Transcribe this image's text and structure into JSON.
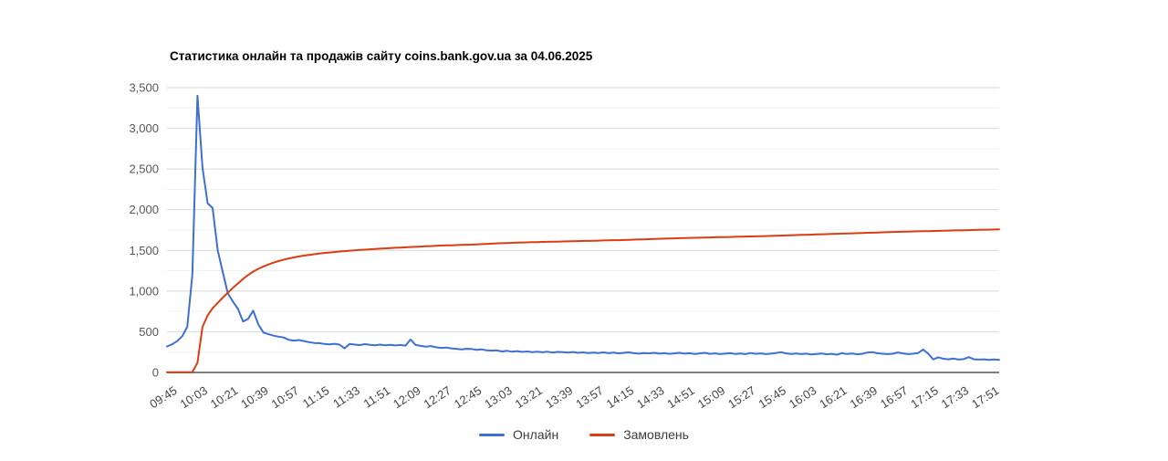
{
  "chart_data": {
    "type": "line",
    "title": "Статистика онлайн та продажів сайту coins.bank.gov.ua за 04.06.2025",
    "xlabel": "",
    "ylabel": "",
    "ylim": [
      0,
      3500
    ],
    "grid": "on",
    "legend_position": "bottom",
    "x_tick_labels": [
      "09:45",
      "10:03",
      "10:21",
      "10:39",
      "10:57",
      "11:15",
      "11:33",
      "11:51",
      "12:09",
      "12:27",
      "12:45",
      "13:03",
      "13:21",
      "13:39",
      "13:57",
      "14:15",
      "14:33",
      "14:51",
      "15:09",
      "15:27",
      "15:45",
      "16:03",
      "16:21",
      "16:39",
      "16:57",
      "17:15",
      "17:33",
      "17:51"
    ],
    "points_per_x_tick": 6,
    "sample_interval_minutes": 3,
    "y_tick_values": [
      0,
      500,
      1000,
      1500,
      2000,
      2500,
      3000,
      3500
    ],
    "y_tick_labels": [
      "0",
      "500",
      "1,000",
      "1,500",
      "2,000",
      "2,500",
      "3,000",
      "3,500"
    ],
    "minor_gridline_values": [
      250,
      750,
      1250,
      1750,
      2250,
      2750,
      3250
    ],
    "series": [
      {
        "name": "Онлайн",
        "color": "#3e6fd4",
        "values": [
          320,
          345,
          385,
          445,
          560,
          1200,
          3400,
          2520,
          2080,
          2020,
          1500,
          1230,
          970,
          870,
          780,
          625,
          660,
          760,
          590,
          490,
          470,
          452,
          440,
          430,
          400,
          392,
          398,
          385,
          372,
          362,
          360,
          350,
          344,
          352,
          342,
          296,
          350,
          342,
          336,
          348,
          340,
          334,
          342,
          334,
          340,
          332,
          338,
          330,
          405,
          338,
          326,
          318,
          324,
          310,
          302,
          306,
          296,
          290,
          284,
          290,
          288,
          278,
          284,
          272,
          268,
          272,
          258,
          266,
          256,
          262,
          252,
          258,
          250,
          256,
          248,
          255,
          245,
          252,
          250,
          245,
          251,
          241,
          247,
          239,
          245,
          239,
          247,
          237,
          243,
          235,
          241,
          247,
          237,
          231,
          239,
          234,
          241,
          231,
          237,
          229,
          235,
          241,
          231,
          237,
          227,
          234,
          241,
          229,
          235,
          225,
          231,
          237,
          227,
          233,
          225,
          239,
          229,
          235,
          225,
          231,
          239,
          249,
          234,
          227,
          233,
          225,
          231,
          221,
          227,
          233,
          223,
          229,
          219,
          237,
          227,
          233,
          223,
          229,
          244,
          250,
          236,
          230,
          226,
          230,
          246,
          234,
          226,
          230,
          238,
          282,
          232,
          160,
          186,
          168,
          162,
          170,
          158,
          164,
          188,
          162,
          158,
          162,
          154,
          159,
          155
        ]
      },
      {
        "name": "Замовлень",
        "color": "#da3d12",
        "values": [
          2,
          2,
          2,
          3,
          3,
          4,
          120,
          560,
          700,
          790,
          855,
          920,
          980,
          1040,
          1095,
          1150,
          1198,
          1240,
          1273,
          1302,
          1327,
          1350,
          1369,
          1386,
          1401,
          1414,
          1426,
          1436,
          1445,
          1453,
          1461,
          1468,
          1474,
          1480,
          1486,
          1491,
          1496,
          1501,
          1505,
          1509,
          1513,
          1517,
          1521,
          1525,
          1529,
          1532,
          1535,
          1538,
          1541,
          1544,
          1547,
          1550,
          1553,
          1556,
          1559,
          1561,
          1563,
          1565,
          1567,
          1569,
          1571,
          1574,
          1577,
          1580,
          1583,
          1586,
          1589,
          1591,
          1593,
          1595,
          1597,
          1599,
          1601,
          1602,
          1604,
          1605,
          1607,
          1608,
          1610,
          1611,
          1613,
          1614,
          1616,
          1617,
          1619,
          1620,
          1622,
          1623,
          1625,
          1626,
          1628,
          1630,
          1632,
          1634,
          1636,
          1638,
          1640,
          1642,
          1644,
          1646,
          1648,
          1650,
          1652,
          1653,
          1655,
          1656,
          1658,
          1659,
          1661,
          1662,
          1664,
          1665,
          1667,
          1668,
          1670,
          1671,
          1673,
          1674,
          1676,
          1678,
          1680,
          1682,
          1684,
          1686,
          1688,
          1690,
          1692,
          1694,
          1696,
          1698,
          1700,
          1702,
          1704,
          1706,
          1708,
          1710,
          1712,
          1714,
          1716,
          1718,
          1720,
          1722,
          1724,
          1726,
          1728,
          1730,
          1731,
          1733,
          1734,
          1736,
          1737,
          1739,
          1740,
          1742,
          1743,
          1745,
          1746,
          1748,
          1749,
          1751,
          1752,
          1754,
          1755,
          1757,
          1759
        ]
      }
    ]
  }
}
